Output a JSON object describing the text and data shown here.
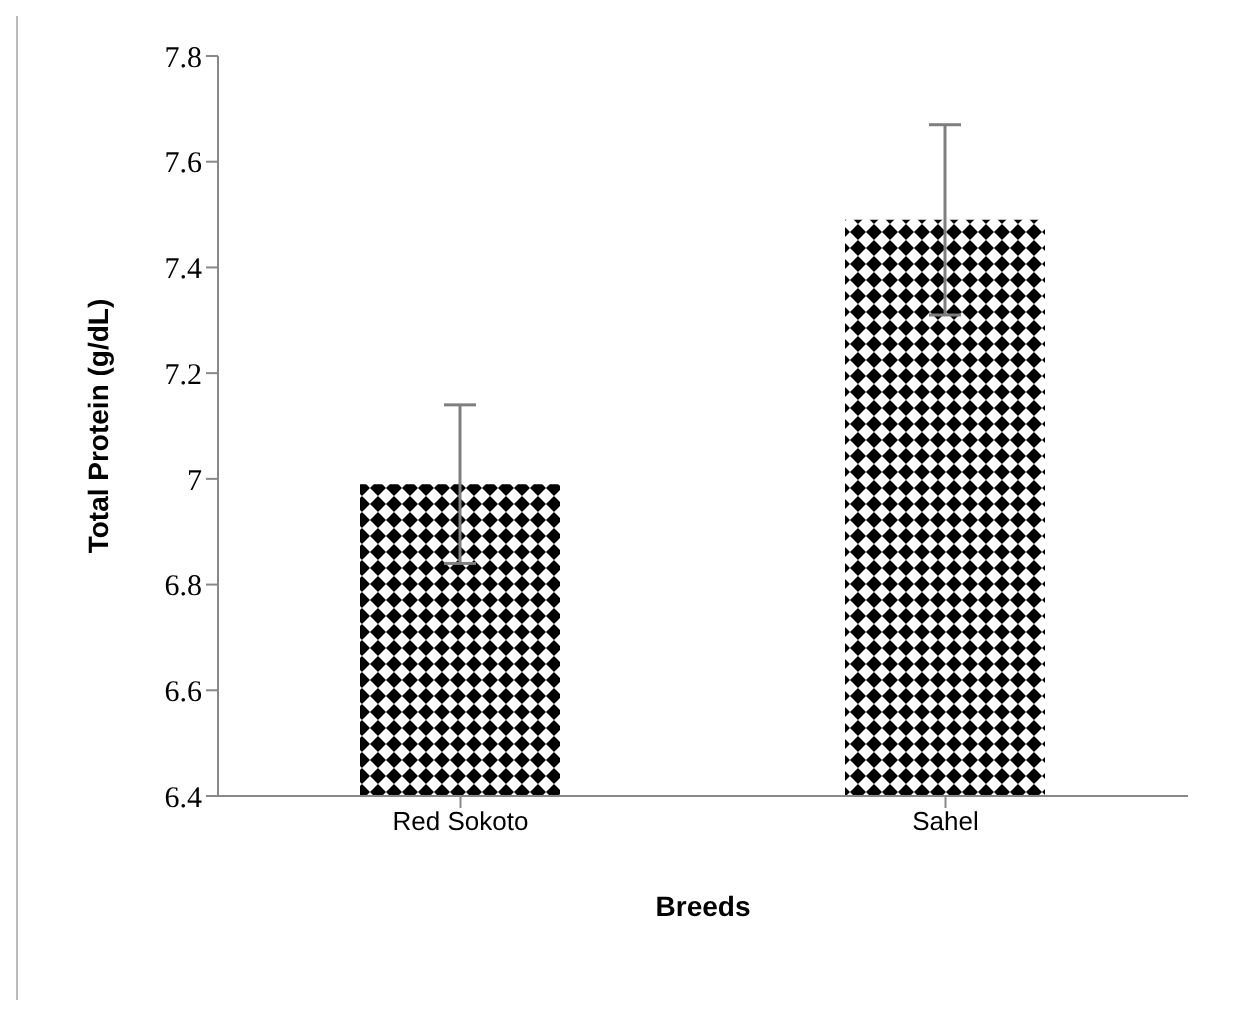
{
  "chart_data": {
    "type": "bar",
    "xlabel": "Breeds",
    "ylabel": "Total Protein (g/dL)",
    "categories": [
      "Red Sokoto",
      "Sahel"
    ],
    "values": [
      6.99,
      7.49
    ],
    "errors": [
      0.15,
      0.18
    ],
    "color": "#000000",
    "ylim": [
      6.4,
      7.8
    ],
    "yticks": [
      6.4,
      6.6,
      6.8,
      7,
      7.2,
      7.4,
      7.6,
      7.8
    ],
    "grid": false,
    "legend": false
  }
}
